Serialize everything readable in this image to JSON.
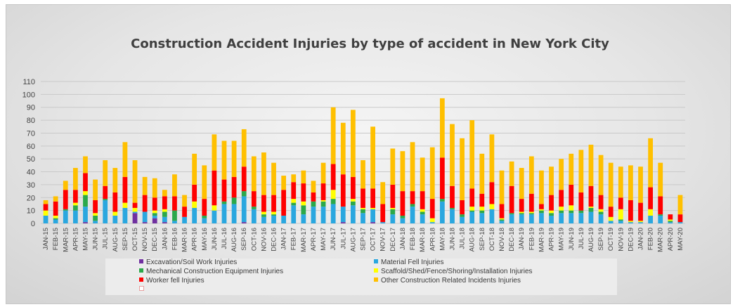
{
  "chart_data": {
    "type": "bar",
    "stacked": true,
    "title": "Construction Accident Injuries by type of accident in New York City",
    "xlabel": "",
    "ylabel": "",
    "ylim": [
      0,
      110
    ],
    "yticks": [
      0,
      10,
      20,
      30,
      40,
      50,
      60,
      70,
      80,
      90,
      100,
      110
    ],
    "grid": true,
    "legend_position": "bottom",
    "categories": [
      "JAN-15",
      "FEB-15",
      "MAR-15",
      "APR-15",
      "MAY-15",
      "JUN-15",
      "JUL-15",
      "AUG-15",
      "SEP-15",
      "OCT-15",
      "NOV-15",
      "DEC-15",
      "JAN-16",
      "FEB-16",
      "MAR-16",
      "APR-16",
      "MAY-16",
      "JUN-16",
      "JUL-16",
      "AUG-16",
      "SEP-16",
      "OCT-16",
      "NOV-16",
      "DEC-16",
      "JAN-17",
      "FEB-17",
      "MAR-17",
      "APR-17",
      "MAY-17",
      "JUN-17",
      "JUL-17",
      "AUG-17",
      "SEP-17",
      "OCT-17",
      "NOV-17",
      "DEC-17",
      "JAN-18",
      "FEB-18",
      "MAR-18",
      "APR-18",
      "MAY-18",
      "JUN-18",
      "JUL-18",
      "AUG-18",
      "SEP-18",
      "OCT-18",
      "NOV-18",
      "DEC-18",
      "JAN-19",
      "FEB-19",
      "MAR-19",
      "APR-19",
      "MAY-19",
      "JUN-19",
      "JUL-19",
      "AUG-19",
      "SEP-19",
      "OCT-19",
      "NOV-19",
      "DEC-19",
      "JAN-20",
      "FEB-20",
      "MAR-20",
      "APR-20",
      "MAY-20"
    ],
    "series": [
      {
        "name": "Excavation/Soil Work Injuries",
        "color": "#7030a0",
        "values": [
          0,
          0,
          0,
          0,
          1,
          0,
          0,
          0,
          0,
          8,
          1,
          4,
          1,
          0,
          0,
          0,
          0,
          0,
          0,
          0,
          1,
          0,
          0,
          0,
          0,
          0,
          0,
          0,
          0,
          0,
          1,
          0,
          0,
          1,
          0,
          0,
          0,
          0,
          0,
          0,
          0,
          0,
          0,
          0,
          0,
          0,
          0,
          0,
          0,
          0,
          0,
          0,
          0,
          0,
          0,
          0,
          0,
          0,
          0,
          0,
          0,
          0,
          0,
          0,
          0
        ]
      },
      {
        "name": "Material Fell Injuries",
        "color": "#2aa7df",
        "values": [
          6,
          3,
          10,
          10,
          12,
          2,
          18,
          6,
          12,
          1,
          8,
          2,
          4,
          2,
          5,
          12,
          4,
          10,
          15,
          15,
          20,
          11,
          5,
          6,
          6,
          14,
          7,
          13,
          13,
          15,
          12,
          14,
          8,
          10,
          1,
          7,
          4,
          13,
          7,
          1,
          17,
          11,
          5,
          9,
          8,
          11,
          2,
          7,
          7,
          7,
          8,
          6,
          8,
          8,
          8,
          9,
          7,
          2,
          2,
          1,
          1,
          6,
          6,
          1,
          1
        ]
      },
      {
        "name": "Mechanical Construction Equipment Injuries",
        "color": "#2ba84a",
        "values": [
          0,
          1,
          1,
          4,
          9,
          4,
          1,
          0,
          0,
          0,
          0,
          2,
          4,
          8,
          0,
          0,
          2,
          0,
          2,
          5,
          4,
          2,
          2,
          1,
          0,
          2,
          7,
          4,
          4,
          4,
          0,
          3,
          3,
          0,
          0,
          4,
          2,
          2,
          2,
          0,
          2,
          1,
          2,
          1,
          2,
          0,
          1,
          1,
          1,
          1,
          2,
          2,
          2,
          2,
          2,
          3,
          2,
          0,
          1,
          0,
          0,
          0,
          1,
          1,
          0
        ]
      },
      {
        "name": "Scaffold/Shed/Fence/Shoring/Installation Injuries",
        "color": "#ffff00",
        "values": [
          4,
          2,
          0,
          2,
          3,
          2,
          0,
          3,
          4,
          3,
          0,
          2,
          2,
          0,
          0,
          5,
          0,
          4,
          0,
          0,
          0,
          0,
          2,
          2,
          0,
          3,
          3,
          0,
          1,
          7,
          0,
          2,
          1,
          1,
          0,
          1,
          0,
          0,
          2,
          3,
          0,
          0,
          0,
          3,
          3,
          4,
          1,
          0,
          1,
          1,
          1,
          2,
          3,
          4,
          0,
          1,
          2,
          3,
          8,
          1,
          1,
          5,
          0,
          1,
          0
        ]
      },
      {
        "name": "Worker fell Injuries",
        "color": "#ff0000",
        "values": [
          5,
          11,
          15,
          10,
          14,
          10,
          10,
          15,
          20,
          4,
          13,
          10,
          10,
          11,
          8,
          13,
          13,
          27,
          17,
          16,
          19,
          12,
          13,
          13,
          20,
          13,
          14,
          7,
          13,
          20,
          25,
          17,
          15,
          15,
          14,
          18,
          19,
          10,
          14,
          15,
          32,
          17,
          11,
          14,
          10,
          17,
          11,
          21,
          10,
          14,
          4,
          12,
          13,
          16,
          14,
          16,
          11,
          8,
          9,
          16,
          14,
          17,
          14,
          4,
          6
        ]
      },
      {
        "name": "Other Construction Related Incidents Injuries",
        "color": "#ffc000",
        "values": [
          3,
          4,
          7,
          17,
          13,
          16,
          20,
          19,
          27,
          33,
          14,
          15,
          5,
          17,
          9,
          24,
          26,
          28,
          30,
          28,
          29,
          27,
          33,
          25,
          11,
          6,
          10,
          9,
          16,
          44,
          40,
          52,
          22,
          48,
          17,
          28,
          31,
          38,
          26,
          40,
          46,
          48,
          48,
          53,
          31,
          37,
          26,
          19,
          24,
          29,
          26,
          22,
          24,
          24,
          33,
          32,
          31,
          34,
          24,
          27,
          28,
          38,
          26,
          0,
          15
        ]
      }
    ]
  }
}
